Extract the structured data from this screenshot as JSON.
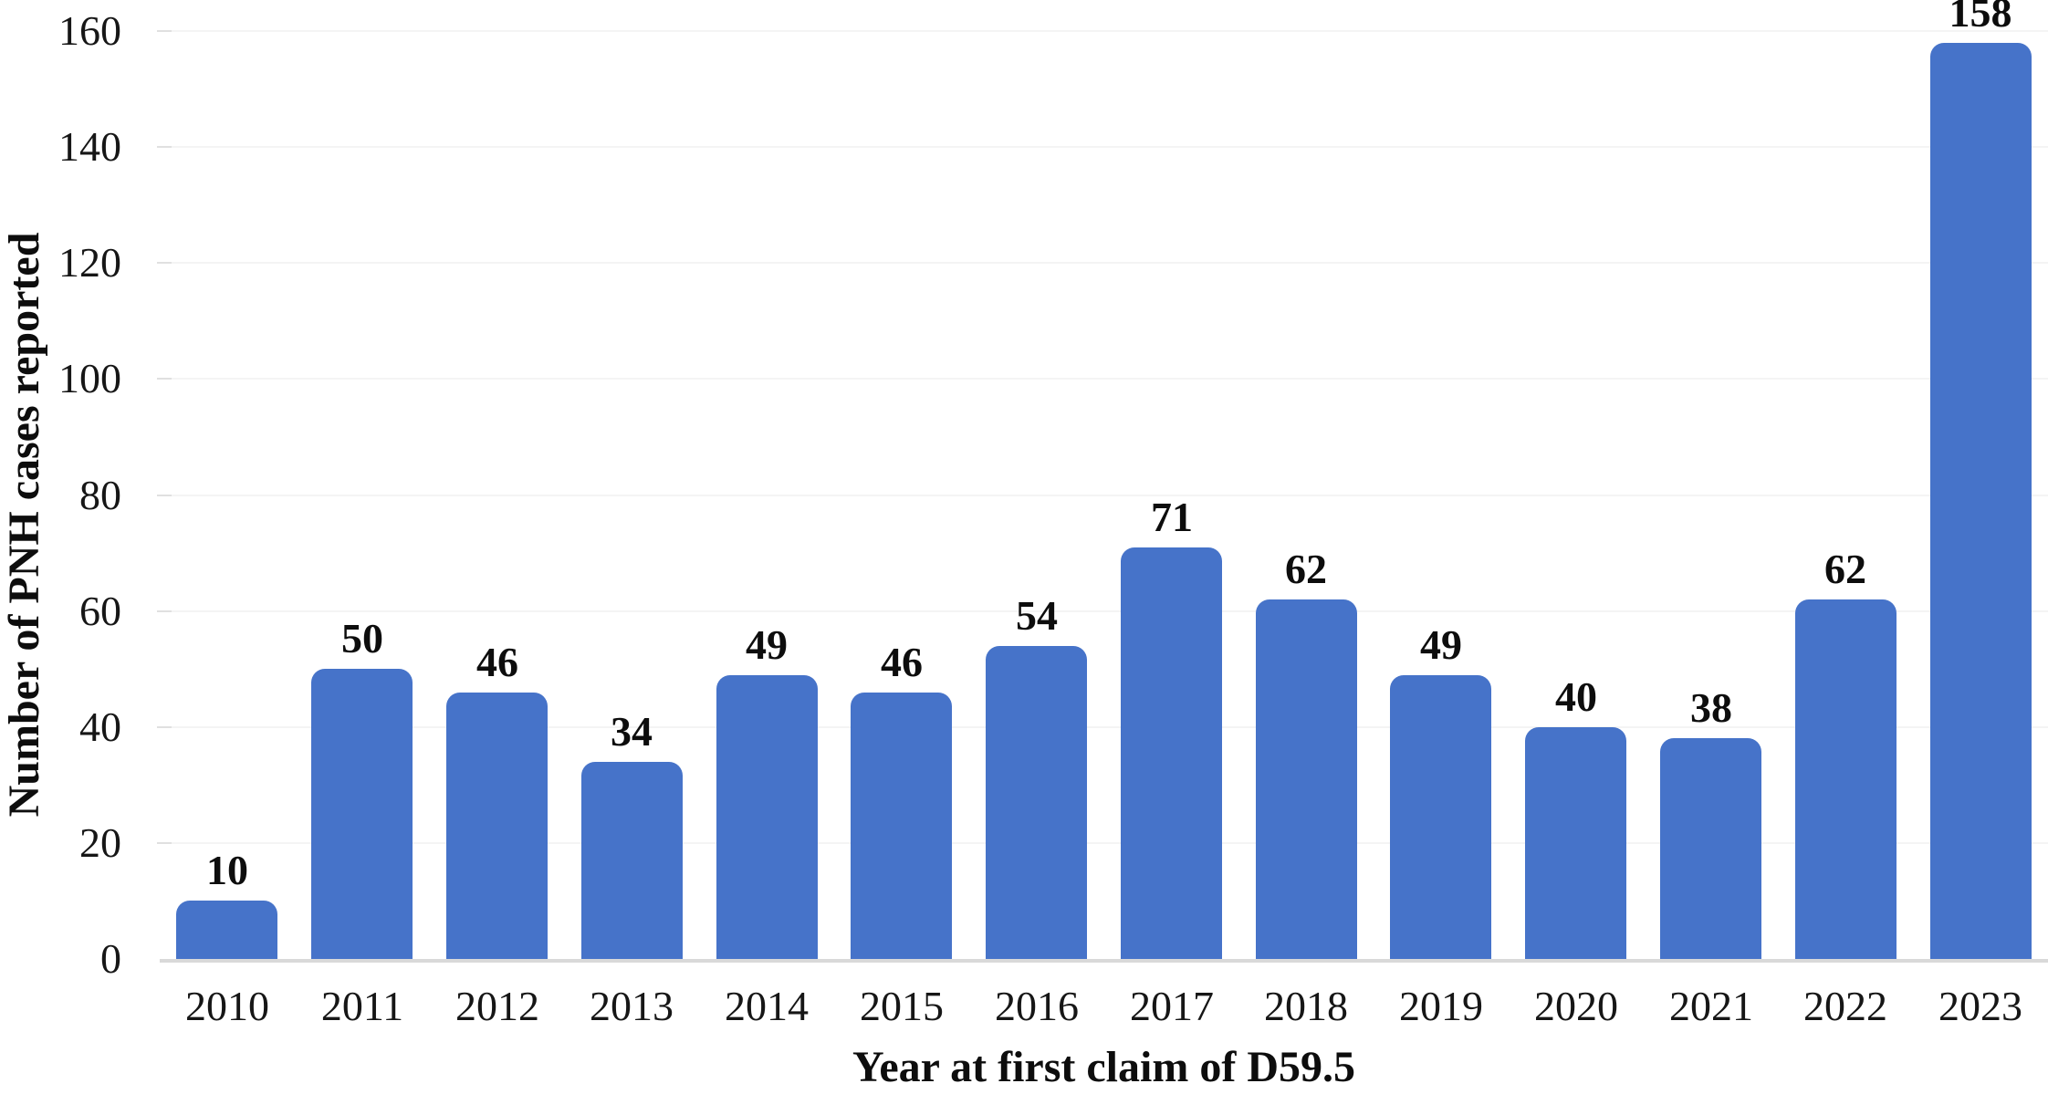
{
  "chart_data": {
    "type": "bar",
    "title": "",
    "xlabel": "Year at first claim of D59.5",
    "ylabel": "Number of PNH cases reported",
    "categories": [
      "2010",
      "2011",
      "2012",
      "2013",
      "2014",
      "2015",
      "2016",
      "2017",
      "2018",
      "2019",
      "2020",
      "2021",
      "2022",
      "2023"
    ],
    "values": [
      10,
      50,
      46,
      34,
      49,
      46,
      54,
      71,
      62,
      49,
      40,
      38,
      62,
      158
    ],
    "yticks": [
      0,
      20,
      40,
      60,
      80,
      100,
      120,
      140,
      160
    ],
    "ylim": [
      0,
      160
    ],
    "ytick_interval": 20,
    "grid": "horizontal-faint",
    "legend": "none",
    "data_labels": true,
    "bar_color": "#4673c9",
    "gridline_color": "#f4f4f4",
    "axis_line_color": "#d9d9d9"
  }
}
